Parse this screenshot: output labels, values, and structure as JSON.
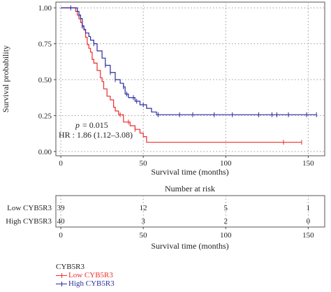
{
  "chart_data": [
    {
      "type": "line",
      "subtype": "kaplan-meier survival curve",
      "title": "",
      "xlabel": "Survival time (months)",
      "ylabel": "Survival probability",
      "xlim": [
        -3,
        160
      ],
      "ylim": [
        -0.03,
        1.04
      ],
      "x_ticks": [
        0,
        50,
        100,
        150
      ],
      "y_ticks": [
        0.0,
        0.25,
        0.5,
        0.75,
        1.0
      ],
      "y_tick_labels": [
        "0.00",
        "0.25",
        "0.50",
        "0.75",
        "1.00"
      ],
      "grid": true,
      "grid_style": "dotted",
      "annotations": {
        "p_label": "p",
        "p_value": "= 0.015",
        "hr": "HR : 1.86 (1.12–3.08)"
      },
      "series": [
        {
          "name": "Low CYB5R3",
          "color": "#ee2c2c",
          "steps": [
            [
              0,
              1.0
            ],
            [
              8,
              1.0
            ],
            [
              9,
              0.974
            ],
            [
              10,
              0.949
            ],
            [
              11,
              0.923
            ],
            [
              12,
              0.897
            ],
            [
              13,
              0.872
            ],
            [
              14,
              0.846
            ],
            [
              15,
              0.795
            ],
            [
              16,
              0.744
            ],
            [
              17,
              0.718
            ],
            [
              18,
              0.692
            ],
            [
              19,
              0.641
            ],
            [
              20,
              0.615
            ],
            [
              22,
              0.564
            ],
            [
              24,
              0.513
            ],
            [
              25,
              0.487
            ],
            [
              26,
              0.436
            ],
            [
              28,
              0.385
            ],
            [
              30,
              0.359
            ],
            [
              32,
              0.308
            ],
            [
              33,
              0.282
            ],
            [
              35,
              0.256
            ],
            [
              38,
              0.205
            ],
            [
              42,
              0.179
            ],
            [
              45,
              0.154
            ],
            [
              48,
              0.128
            ],
            [
              50,
              0.103
            ],
            [
              52,
              0.064
            ],
            [
              146,
              0.064
            ]
          ],
          "censor": [
            [
              13,
              0.872
            ],
            [
              36,
              0.256
            ],
            [
              41,
              0.205
            ],
            [
              45,
              0.154
            ],
            [
              135,
              0.064
            ],
            [
              146,
              0.064
            ]
          ]
        },
        {
          "name": "High CYB5R3",
          "color": "#2c2ca0",
          "steps": [
            [
              0,
              1.0
            ],
            [
              9,
              1.0
            ],
            [
              10,
              0.975
            ],
            [
              11,
              0.95
            ],
            [
              12,
              0.925
            ],
            [
              13,
              0.875
            ],
            [
              14,
              0.85
            ],
            [
              15,
              0.825
            ],
            [
              17,
              0.8
            ],
            [
              18,
              0.775
            ],
            [
              20,
              0.75
            ],
            [
              22,
              0.7
            ],
            [
              25,
              0.65
            ],
            [
              27,
              0.6
            ],
            [
              30,
              0.55
            ],
            [
              33,
              0.5
            ],
            [
              36,
              0.475
            ],
            [
              38,
              0.45
            ],
            [
              39,
              0.4
            ],
            [
              41,
              0.375
            ],
            [
              45,
              0.35
            ],
            [
              48,
              0.325
            ],
            [
              52,
              0.3
            ],
            [
              55,
              0.275
            ],
            [
              58,
              0.256
            ],
            [
              155,
              0.256
            ]
          ],
          "censor": [
            [
              6,
              1.0
            ],
            [
              11,
              0.95
            ],
            [
              13,
              0.875
            ],
            [
              20,
              0.75
            ],
            [
              27,
              0.6
            ],
            [
              30,
              0.55
            ],
            [
              33,
              0.5
            ],
            [
              38,
              0.45
            ],
            [
              40,
              0.4
            ],
            [
              44,
              0.375
            ],
            [
              46,
              0.35
            ],
            [
              50,
              0.325
            ],
            [
              59,
              0.256
            ],
            [
              72,
              0.256
            ],
            [
              80,
              0.256
            ],
            [
              93,
              0.256
            ],
            [
              104,
              0.256
            ],
            [
              120,
              0.256
            ],
            [
              128,
              0.256
            ],
            [
              131,
              0.256
            ],
            [
              138,
              0.256
            ],
            [
              149,
              0.256
            ],
            [
              155,
              0.256
            ]
          ]
        }
      ]
    },
    {
      "type": "table",
      "title": "Number at risk",
      "xlabel": "Survival time (months)",
      "x_ticks": [
        0,
        50,
        100,
        150
      ],
      "rows": [
        {
          "label": "Low CYB5R3",
          "color": "#ee2c2c",
          "values": [
            39,
            12,
            5,
            1
          ]
        },
        {
          "label": "High CYB5R3",
          "color": "#2c2ca0",
          "values": [
            40,
            3,
            2,
            0
          ]
        }
      ]
    }
  ],
  "legend": {
    "title": "CYB5R3",
    "placement": "bottom-left",
    "entries": [
      {
        "label": "Low CYB5R3",
        "color": "#ee2c2c"
      },
      {
        "label": "High CYB5R3",
        "color": "#2c2ca0"
      }
    ]
  }
}
